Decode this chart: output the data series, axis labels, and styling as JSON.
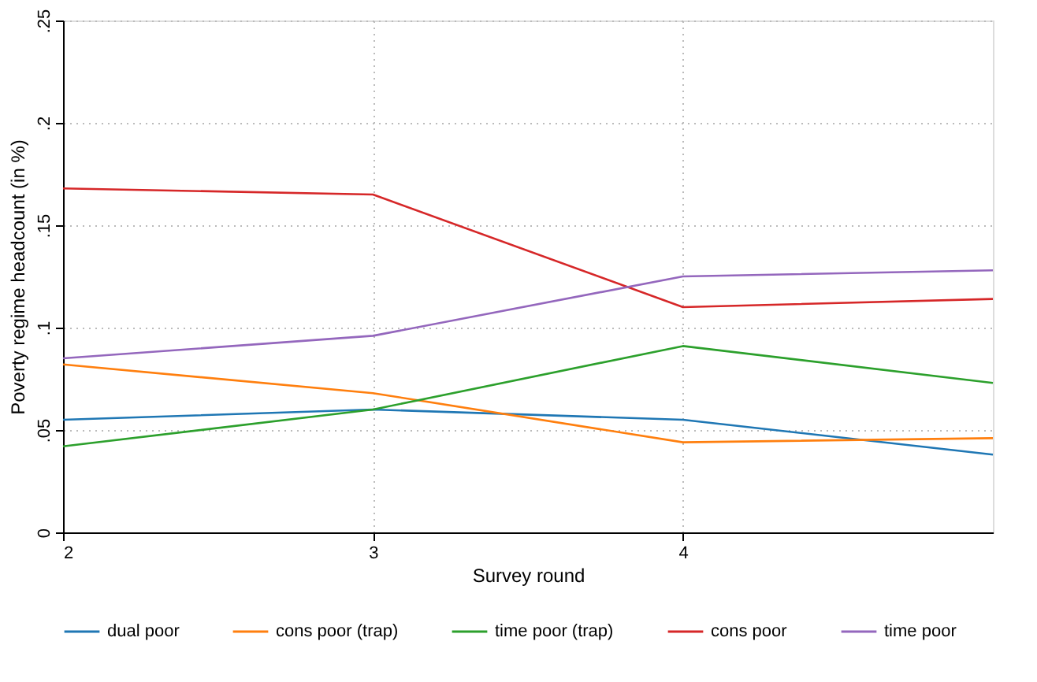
{
  "chart_data": {
    "type": "line",
    "xlabel": "Survey round",
    "ylabel": "Poverty regime headcount (in %)",
    "x": [
      2,
      3,
      4,
      5
    ],
    "series": [
      {
        "name": "dual poor",
        "color": "#1f77b4",
        "values": [
          0.055,
          0.06,
          0.055,
          0.038
        ]
      },
      {
        "name": "cons poor (trap)",
        "color": "#ff7f0e",
        "values": [
          0.082,
          0.068,
          0.044,
          0.046
        ]
      },
      {
        "name": "time poor (trap)",
        "color": "#2ca02c",
        "values": [
          0.042,
          0.06,
          0.091,
          0.073
        ]
      },
      {
        "name": "cons poor",
        "color": "#d62728",
        "values": [
          0.168,
          0.165,
          0.11,
          0.114
        ]
      },
      {
        "name": "time poor",
        "color": "#9467bd",
        "values": [
          0.085,
          0.096,
          0.125,
          0.128
        ]
      }
    ],
    "xlim": [
      2,
      5
    ],
    "xticks": [
      2,
      3,
      4
    ],
    "ylim": [
      0,
      0.25
    ],
    "yticks": [
      0,
      {
        "value": 0.05,
        "label": ".05"
      },
      {
        "value": 0.1,
        "label": ".1"
      },
      {
        "value": 0.15,
        "label": ".15"
      },
      {
        "value": 0.2,
        "label": ".2"
      },
      {
        "value": 0.25,
        "label": ".25"
      }
    ],
    "grid": true,
    "legend": "bottom",
    "marker": "none",
    "line_style": "solid"
  }
}
